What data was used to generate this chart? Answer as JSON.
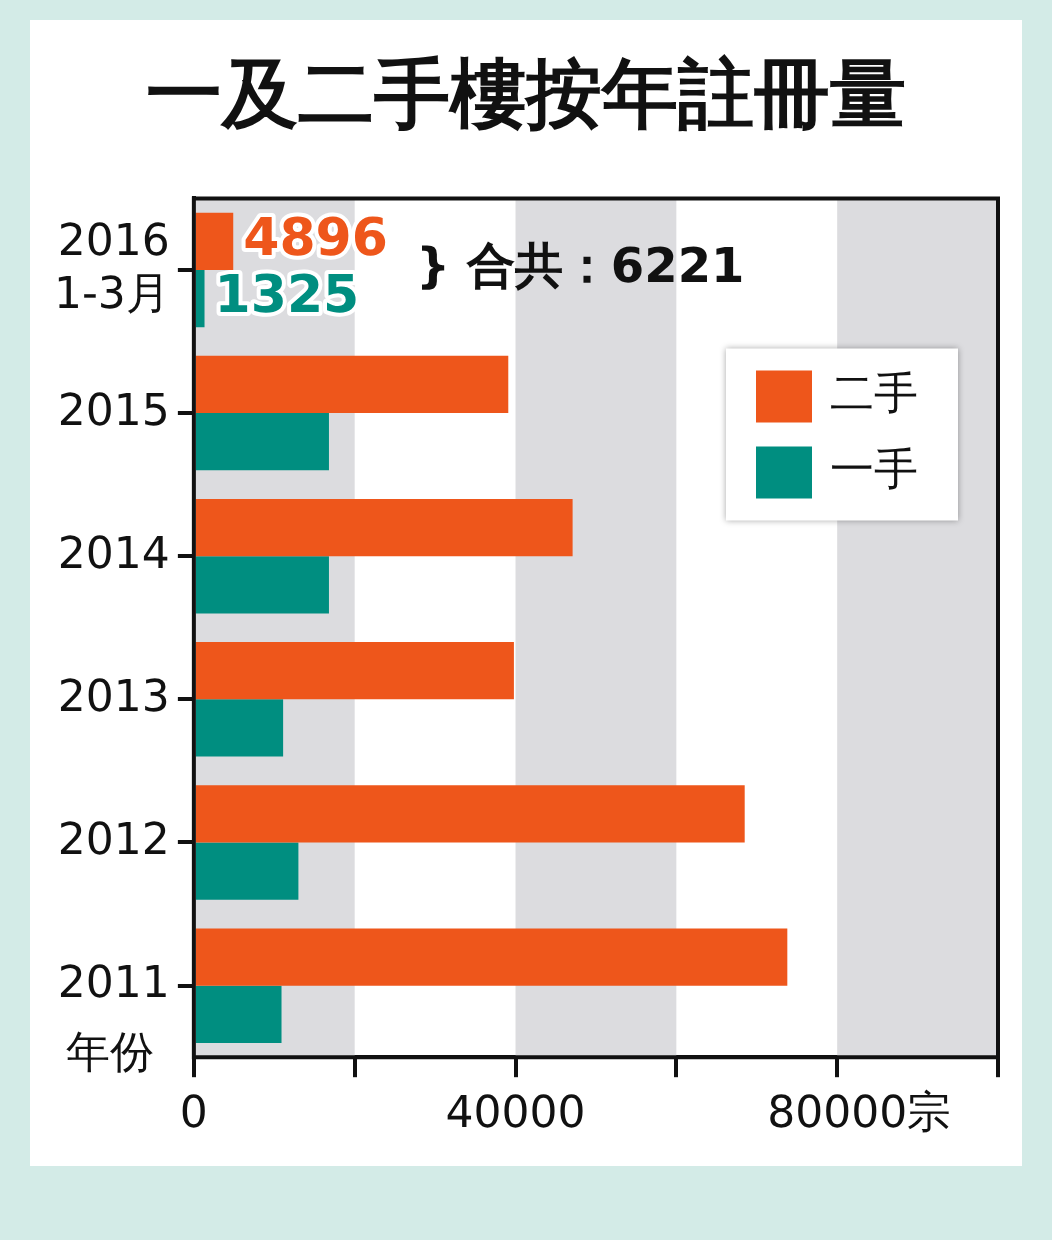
{
  "chart_data": {
    "type": "bar",
    "orientation": "horizontal",
    "title": "一及二手樓按年註冊量",
    "xlabel": "宗",
    "ylabel": "年份",
    "categories": [
      "2016 1-3月",
      "2015",
      "2014",
      "2013",
      "2012",
      "2011"
    ],
    "series": [
      {
        "name": "二手",
        "color": "#ee561b",
        "values": [
          4896,
          39100,
          47100,
          39800,
          68500,
          73800
        ],
        "value_labels": [
          "4896",
          null,
          null,
          null,
          null,
          null
        ]
      },
      {
        "name": "一手",
        "color": "#008e80",
        "values": [
          1325,
          16800,
          16800,
          11100,
          13000,
          10900
        ],
        "value_labels": [
          "1325",
          null,
          null,
          null,
          null,
          null
        ]
      }
    ],
    "xlim": [
      0,
      100000
    ],
    "xticks": [
      0,
      {
        "value": 20000,
        "label": null
      },
      40000,
      {
        "value": 60000,
        "label": null
      },
      80000,
      {
        "value": 100000,
        "label": null
      }
    ],
    "bands": [
      {
        "axis": "x",
        "from": 0,
        "to": 20000,
        "color": "#dcdcdf"
      },
      {
        "axis": "x",
        "from": 40000,
        "to": 60000,
        "color": "#dcdcdf"
      },
      {
        "axis": "x",
        "from": 80000,
        "to": 100000,
        "color": "#dcdcdf"
      }
    ],
    "annotations": [
      "} 合共：6221"
    ],
    "legend": "top right",
    "grid": false
  }
}
